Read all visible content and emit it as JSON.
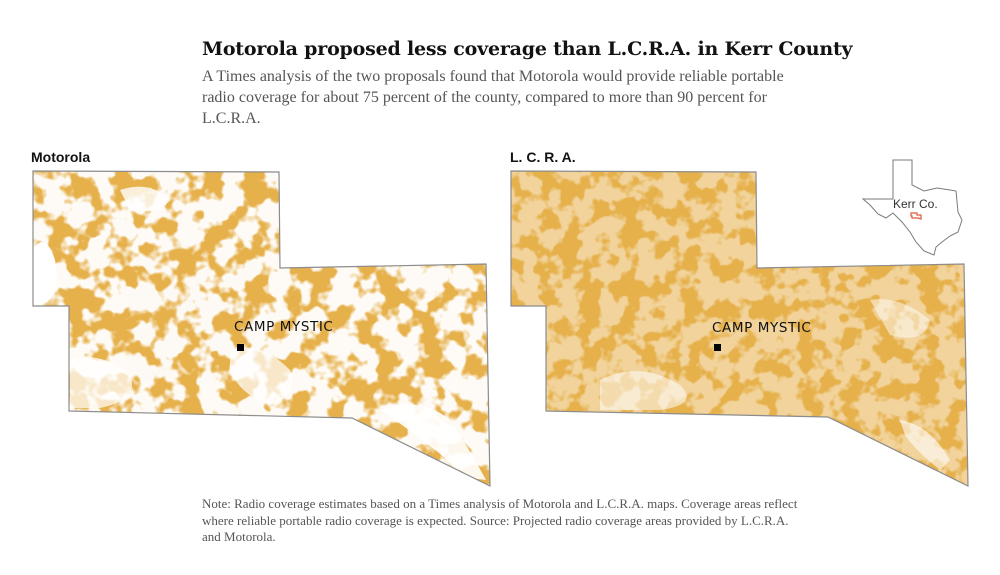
{
  "title": "Motorola proposed less coverage than L.C.R.A. in Kerr County",
  "subtitle": "A Times analysis of the two proposals found that Motorola would provide reliable portable radio coverage for about 75 percent of the county, compared to more than 90 percent for L.C.R.A.",
  "panels": [
    {
      "label": "Motorola",
      "place_label": "CAMP MYSTIC",
      "coverage_percent": 75
    },
    {
      "label": "L. C. R. A.",
      "place_label": "CAMP MYSTIC",
      "coverage_percent": 90
    }
  ],
  "inset": {
    "label": "Kerr Co."
  },
  "note": "Note: Radio coverage estimates based on a Times analysis of Motorola and L.C.R.A. maps. Coverage areas reflect where reliable portable radio coverage is expected.  Source: Projected radio coverage areas provided by L.C.R.A. and Motorola.",
  "colors": {
    "coverage": "#e6b04a",
    "gap": "#ffffff",
    "outline": "#8c8c8c",
    "county_highlight": "#e05a3a",
    "marker": "#000000"
  }
}
